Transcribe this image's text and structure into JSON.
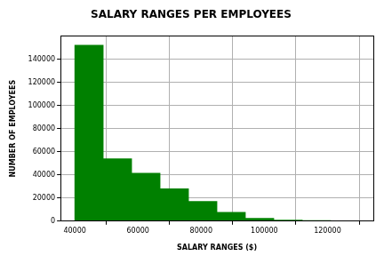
{
  "chart_data": {
    "type": "histogram",
    "title": "SALARY RANGES PER EMPLOYEES",
    "x_label": "SALARY RANGES ($)",
    "y_label": "NUMBER OF EMPLOYEES",
    "bins": [
      40000,
      49000,
      58000,
      67000,
      76000,
      85000,
      94000,
      103000,
      112000,
      121000,
      130000
    ],
    "values": [
      152000,
      54000,
      41500,
      28000,
      17000,
      7600,
      2500,
      1000,
      500,
      100
    ],
    "color": "#008000",
    "xlim": [
      35500,
      134500
    ],
    "xticks": [
      40000,
      60000,
      80000,
      100000,
      120000
    ],
    "ylim": [
      0,
      160000
    ],
    "yticks": [
      0,
      20000,
      40000,
      60000,
      80000,
      100000,
      120000,
      140000
    ],
    "grid": true
  }
}
